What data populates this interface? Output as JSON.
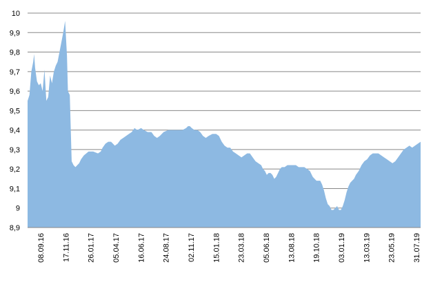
{
  "chart_data": {
    "type": "area",
    "title": "",
    "xlabel": "",
    "ylabel": "",
    "ylim": [
      8.9,
      10
    ],
    "y_ticks": [
      "10",
      "9,9",
      "9,8",
      "9,7",
      "9,6",
      "9,5",
      "9,4",
      "9,3",
      "9,2",
      "9,1",
      "9",
      "8,9"
    ],
    "x_ticks": [
      "08.09.16",
      "17.11.16",
      "26.01.17",
      "05.04.17",
      "16.06.17",
      "24.08.17",
      "02.11.17",
      "15.01.18",
      "23.03.18",
      "05.06.18",
      "13.08.18",
      "19.10.18",
      "03.01.19",
      "13.03.19",
      "23.05.19",
      "31.07.19"
    ],
    "grid": "horizontal",
    "legend": "none",
    "fill_color": "#8db9e2",
    "gridline_color": "#888888",
    "series": [
      {
        "values": [
          [
            0,
            9.55
          ],
          [
            2,
            9.58
          ],
          [
            4,
            9.7
          ],
          [
            6,
            9.75
          ],
          [
            7,
            9.79
          ],
          [
            8,
            9.72
          ],
          [
            10,
            9.65
          ],
          [
            12,
            9.63
          ],
          [
            14,
            9.64
          ],
          [
            16,
            9.6
          ],
          [
            18,
            9.71
          ],
          [
            20,
            9.55
          ],
          [
            22,
            9.57
          ],
          [
            24,
            9.68
          ],
          [
            26,
            9.64
          ],
          [
            28,
            9.7
          ],
          [
            30,
            9.73
          ],
          [
            32,
            9.75
          ],
          [
            34,
            9.8
          ],
          [
            36,
            9.85
          ],
          [
            38,
            9.9
          ],
          [
            40,
            9.96
          ],
          [
            42,
            9.78
          ],
          [
            43,
            9.6
          ],
          [
            45,
            9.58
          ],
          [
            47,
            9.24
          ],
          [
            49,
            9.22
          ],
          [
            51,
            9.21
          ],
          [
            53,
            9.22
          ],
          [
            55,
            9.23
          ],
          [
            57,
            9.25
          ],
          [
            60,
            9.27
          ],
          [
            65,
            9.29
          ],
          [
            70,
            9.29
          ],
          [
            75,
            9.28
          ],
          [
            78,
            9.29
          ],
          [
            80,
            9.31
          ],
          [
            83,
            9.33
          ],
          [
            86,
            9.34
          ],
          [
            89,
            9.34
          ],
          [
            91,
            9.33
          ],
          [
            93,
            9.32
          ],
          [
            96,
            9.33
          ],
          [
            99,
            9.35
          ],
          [
            102,
            9.36
          ],
          [
            105,
            9.37
          ],
          [
            108,
            9.38
          ],
          [
            111,
            9.39
          ],
          [
            114,
            9.41
          ],
          [
            117,
            9.4
          ],
          [
            121,
            9.41
          ],
          [
            124,
            9.4
          ],
          [
            128,
            9.39
          ],
          [
            132,
            9.39
          ],
          [
            135,
            9.37
          ],
          [
            138,
            9.36
          ],
          [
            141,
            9.37
          ],
          [
            145,
            9.39
          ],
          [
            150,
            9.4
          ],
          [
            155,
            9.4
          ],
          [
            160,
            9.4
          ],
          [
            165,
            9.4
          ],
          [
            169,
            9.41
          ],
          [
            171,
            9.42
          ],
          [
            173,
            9.42
          ],
          [
            175,
            9.41
          ],
          [
            178,
            9.4
          ],
          [
            181,
            9.4
          ],
          [
            184,
            9.39
          ],
          [
            187,
            9.37
          ],
          [
            190,
            9.36
          ],
          [
            193,
            9.37
          ],
          [
            197,
            9.38
          ],
          [
            201,
            9.38
          ],
          [
            204,
            9.37
          ],
          [
            207,
            9.34
          ],
          [
            210,
            9.32
          ],
          [
            213,
            9.31
          ],
          [
            216,
            9.31
          ],
          [
            219,
            9.29
          ],
          [
            222,
            9.28
          ],
          [
            225,
            9.27
          ],
          [
            228,
            9.26
          ],
          [
            231,
            9.27
          ],
          [
            234,
            9.28
          ],
          [
            237,
            9.28
          ],
          [
            240,
            9.26
          ],
          [
            243,
            9.24
          ],
          [
            246,
            9.23
          ],
          [
            249,
            9.22
          ],
          [
            251,
            9.2
          ],
          [
            253,
            9.19
          ],
          [
            255,
            9.17
          ],
          [
            257,
            9.18
          ],
          [
            259,
            9.18
          ],
          [
            261,
            9.17
          ],
          [
            263,
            9.15
          ],
          [
            265,
            9.16
          ],
          [
            267,
            9.18
          ],
          [
            269,
            9.2
          ],
          [
            271,
            9.21
          ],
          [
            274,
            9.21
          ],
          [
            277,
            9.22
          ],
          [
            280,
            9.22
          ],
          [
            283,
            9.22
          ],
          [
            286,
            9.22
          ],
          [
            289,
            9.21
          ],
          [
            292,
            9.21
          ],
          [
            295,
            9.21
          ],
          [
            298,
            9.2
          ],
          [
            301,
            9.19
          ],
          [
            304,
            9.16
          ],
          [
            306,
            9.15
          ],
          [
            308,
            9.14
          ],
          [
            310,
            9.14
          ],
          [
            312,
            9.14
          ],
          [
            314,
            9.12
          ],
          [
            316,
            9.09
          ],
          [
            318,
            9.05
          ],
          [
            320,
            9.02
          ],
          [
            322,
            9.01
          ],
          [
            324,
            8.99
          ],
          [
            326,
            8.99
          ],
          [
            328,
            9.0
          ],
          [
            330,
            9.01
          ],
          [
            332,
            8.99
          ],
          [
            334,
            8.99
          ],
          [
            336,
            9.01
          ],
          [
            338,
            9.04
          ],
          [
            340,
            9.08
          ],
          [
            342,
            9.11
          ],
          [
            344,
            9.13
          ],
          [
            346,
            9.14
          ],
          [
            348,
            9.15
          ],
          [
            350,
            9.17
          ],
          [
            353,
            9.19
          ],
          [
            356,
            9.22
          ],
          [
            359,
            9.24
          ],
          [
            362,
            9.25
          ],
          [
            365,
            9.27
          ],
          [
            368,
            9.28
          ],
          [
            371,
            9.28
          ],
          [
            374,
            9.28
          ],
          [
            377,
            9.27
          ],
          [
            380,
            9.26
          ],
          [
            383,
            9.25
          ],
          [
            386,
            9.24
          ],
          [
            389,
            9.23
          ],
          [
            392,
            9.24
          ],
          [
            395,
            9.26
          ],
          [
            398,
            9.28
          ],
          [
            401,
            9.3
          ],
          [
            404,
            9.31
          ],
          [
            407,
            9.32
          ],
          [
            410,
            9.31
          ],
          [
            413,
            9.32
          ],
          [
            416,
            9.33
          ],
          [
            419,
            9.34
          ]
        ]
      }
    ]
  }
}
